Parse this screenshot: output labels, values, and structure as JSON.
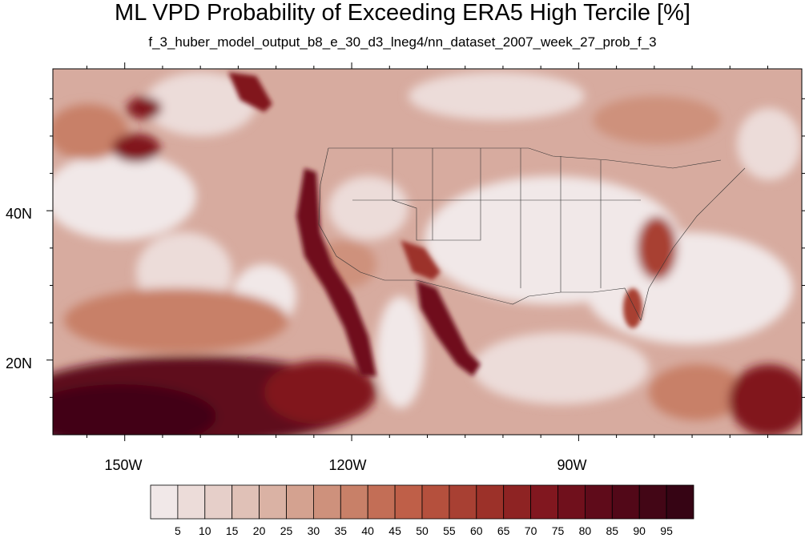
{
  "title": "ML VPD Probability of Exceeding ERA5 High Tercile [%]",
  "subtitle": "f_3_huber_model_output_b8_e_30_d3_lneg4/nn_dataset_2007_week_27_prob_f_3",
  "axes": {
    "lat_labels": [
      "40N",
      "20N"
    ],
    "lon_labels": [
      "150W",
      "120W",
      "90W"
    ]
  },
  "colorbar": {
    "labels": [
      "5",
      "10",
      "15",
      "20",
      "25",
      "30",
      "35",
      "40",
      "45",
      "50",
      "55",
      "60",
      "65",
      "70",
      "75",
      "80",
      "85",
      "90",
      "95"
    ],
    "colors": [
      "#f1e8e8",
      "#ecdcd9",
      "#e6cfc9",
      "#e0c1b7",
      "#dab2a4",
      "#d4a290",
      "#ce917c",
      "#c88068",
      "#c36e56",
      "#bf5f48",
      "#b5503d",
      "#a84033",
      "#9c3129",
      "#8e2323",
      "#81171f",
      "#70101c",
      "#5f0b1a",
      "#520818",
      "#430616",
      "#360414"
    ]
  },
  "map": {
    "projection": "cylindrical-equidistant",
    "lon_range": [
      -159.5,
      -60.5
    ],
    "lat_range": [
      10,
      59
    ],
    "lat_ticks": [
      40,
      20
    ],
    "lon_ticks": [
      -150,
      -120,
      -90
    ]
  }
}
